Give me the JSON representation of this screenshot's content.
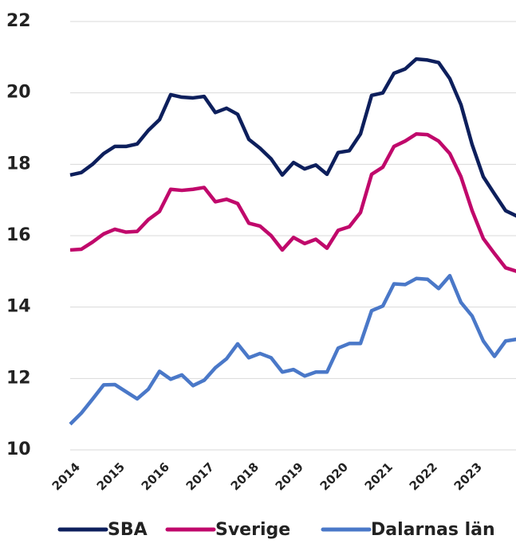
{
  "chart_data": {
    "type": "line",
    "categories": [
      "2014",
      null,
      null,
      null,
      "2015",
      null,
      null,
      null,
      "2016",
      null,
      null,
      null,
      "2017",
      null,
      null,
      null,
      "2018",
      null,
      null,
      null,
      "2019",
      null,
      null,
      null,
      "2020",
      null,
      null,
      null,
      "2021",
      null,
      null,
      null,
      "2022",
      null,
      null,
      null,
      "2023",
      null,
      null,
      null,
      null
    ],
    "series": [
      {
        "name": "SBA",
        "color": "#0d1f5c",
        "values": [
          17.7,
          17.77,
          18.0,
          18.3,
          18.5,
          18.5,
          18.57,
          18.95,
          19.25,
          19.95,
          19.88,
          19.86,
          19.9,
          19.45,
          19.57,
          19.4,
          18.7,
          18.45,
          18.15,
          17.7,
          18.05,
          17.87,
          17.98,
          17.72,
          18.33,
          18.38,
          18.85,
          19.93,
          20.0,
          20.55,
          20.67,
          20.95,
          20.92,
          20.85,
          20.4,
          19.67,
          18.55,
          17.65,
          17.17,
          16.7,
          16.55
        ]
      },
      {
        "name": "Sverige",
        "color": "#c0086b",
        "values": [
          15.6,
          15.62,
          15.82,
          16.05,
          16.18,
          16.1,
          16.12,
          16.45,
          16.68,
          17.3,
          17.27,
          17.3,
          17.35,
          16.95,
          17.02,
          16.9,
          16.35,
          16.27,
          16.0,
          15.6,
          15.95,
          15.78,
          15.9,
          15.65,
          16.15,
          16.25,
          16.65,
          17.72,
          17.92,
          18.5,
          18.65,
          18.85,
          18.83,
          18.65,
          18.3,
          17.65,
          16.7,
          15.92,
          15.5,
          15.1,
          15.0
        ]
      },
      {
        "name": "Dalarnas län",
        "color": "#4a78c8",
        "values": [
          10.72,
          11.03,
          11.42,
          11.82,
          11.83,
          11.63,
          11.43,
          11.7,
          12.2,
          11.98,
          12.1,
          11.8,
          11.95,
          12.3,
          12.55,
          12.97,
          12.58,
          12.7,
          12.58,
          12.18,
          12.25,
          12.07,
          12.18,
          12.18,
          12.85,
          12.98,
          12.98,
          13.9,
          14.03,
          14.65,
          14.63,
          14.8,
          14.78,
          14.52,
          14.88,
          14.13,
          13.75,
          13.05,
          12.62,
          13.05,
          13.1
        ]
      }
    ],
    "ylim": [
      10,
      22
    ],
    "yticks": [
      10,
      12,
      14,
      16,
      18,
      20,
      22
    ],
    "grid": true,
    "legend": "bottom"
  }
}
